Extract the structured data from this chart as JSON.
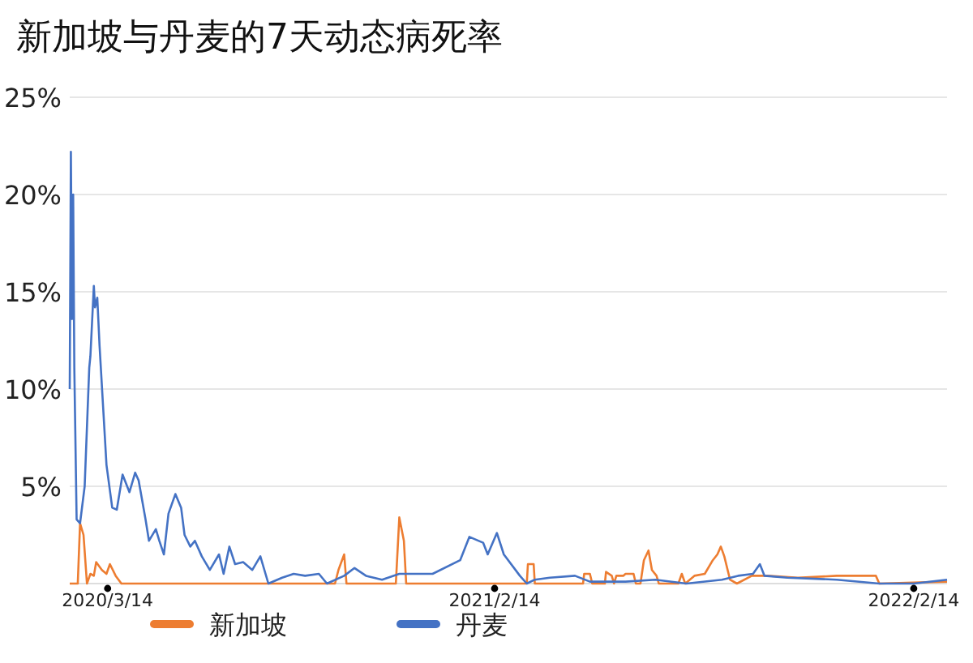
{
  "chart_data": {
    "type": "line",
    "title": "新加坡与丹麦的7天动态病死率",
    "xlim": [
      "2020-02-10",
      "2022-03-15"
    ],
    "xticks": [
      {
        "value": "2020-03-14",
        "label": "2020/3/14"
      },
      {
        "value": "2021-02-14",
        "label": "2021/2/14"
      },
      {
        "value": "2022-02-14",
        "label": "2022/2/14"
      }
    ],
    "ylim": [
      0,
      25
    ],
    "yticks": [
      {
        "value": 5,
        "label": "5%"
      },
      {
        "value": 10,
        "label": "10%"
      },
      {
        "value": 15,
        "label": "15%"
      },
      {
        "value": 20,
        "label": "20%"
      },
      {
        "value": 25,
        "label": "25%"
      }
    ],
    "grid": "y",
    "legend": "bottom",
    "series": [
      {
        "name": "新加坡",
        "color": "#ed7d31",
        "x": [
          "2020-02-10",
          "2020-02-17",
          "2020-02-19",
          "2020-02-22",
          "2020-02-25",
          "2020-02-28",
          "2020-03-02",
          "2020-03-04",
          "2020-03-09",
          "2020-03-13",
          "2020-03-16",
          "2020-03-21",
          "2020-03-26",
          "2020-05-03",
          "2020-09-28",
          "2020-10-01",
          "2020-10-06",
          "2020-10-08",
          "2020-11-20",
          "2020-11-23",
          "2020-11-27",
          "2020-11-29",
          "2021-03-14",
          "2021-03-15",
          "2021-03-20",
          "2021-03-21",
          "2021-05-02",
          "2021-05-03",
          "2021-05-08",
          "2021-05-10",
          "2021-05-21",
          "2021-05-22",
          "2021-05-27",
          "2021-05-29",
          "2021-05-31",
          "2021-06-06",
          "2021-06-08",
          "2021-06-15",
          "2021-06-17",
          "2021-06-21",
          "2021-06-24",
          "2021-06-28",
          "2021-07-01",
          "2021-07-05",
          "2021-07-07",
          "2021-07-24",
          "2021-07-27",
          "2021-07-30",
          "2021-08-07",
          "2021-08-16",
          "2021-08-23",
          "2021-08-27",
          "2021-08-30",
          "2021-09-02",
          "2021-09-07",
          "2021-09-13",
          "2021-09-26",
          "2021-10-10",
          "2021-11-05",
          "2021-12-09",
          "2022-01-06",
          "2022-01-12",
          "2022-01-15",
          "2022-03-15"
        ],
        "values": [
          0,
          0,
          3.1,
          2.5,
          0,
          0.5,
          0.4,
          1.1,
          0.7,
          0.5,
          1.0,
          0.4,
          0,
          0,
          0,
          0.7,
          1.5,
          0,
          0,
          3.4,
          2.2,
          0,
          0,
          1.0,
          1.0,
          0,
          0,
          0.5,
          0.5,
          0,
          0,
          0.6,
          0.4,
          0,
          0.4,
          0.4,
          0.5,
          0.5,
          0,
          0,
          1.2,
          1.7,
          0.7,
          0.4,
          0,
          0,
          0.5,
          0,
          0.4,
          0.5,
          1.2,
          1.5,
          1.9,
          1.4,
          0.2,
          0,
          0.4,
          0.4,
          0.3,
          0.4,
          0.4,
          0.4,
          0,
          0.1
        ]
      },
      {
        "name": "丹麦",
        "color": "#4472c4",
        "x": [
          "2020-02-10",
          "2020-02-11",
          "2020-02-12",
          "2020-02-13",
          "2020-02-14",
          "2020-02-16",
          "2020-02-19",
          "2020-02-23",
          "2020-02-27",
          "2020-02-28",
          "2020-03-02",
          "2020-03-03",
          "2020-03-05",
          "2020-03-07",
          "2020-03-13",
          "2020-03-18",
          "2020-03-22",
          "2020-03-27",
          "2020-04-02",
          "2020-04-07",
          "2020-04-10",
          "2020-04-16",
          "2020-04-19",
          "2020-04-25",
          "2020-04-28",
          "2020-05-02",
          "2020-05-06",
          "2020-05-12",
          "2020-05-17",
          "2020-05-20",
          "2020-05-25",
          "2020-05-29",
          "2020-06-04",
          "2020-06-11",
          "2020-06-19",
          "2020-06-23",
          "2020-06-28",
          "2020-07-03",
          "2020-07-10",
          "2020-07-18",
          "2020-07-25",
          "2020-08-01",
          "2020-08-13",
          "2020-08-23",
          "2020-09-02",
          "2020-09-14",
          "2020-09-21",
          "2020-10-06",
          "2020-10-15",
          "2020-10-25",
          "2020-11-08",
          "2020-11-23",
          "2020-12-22",
          "2021-01-15",
          "2021-01-23",
          "2021-02-04",
          "2021-02-08",
          "2021-02-16",
          "2021-02-22",
          "2021-03-08",
          "2021-03-14",
          "2021-03-21",
          "2021-04-03",
          "2021-04-25",
          "2021-05-08",
          "2021-06-08",
          "2021-07-04",
          "2021-07-31",
          "2021-08-31",
          "2021-09-14",
          "2021-09-27",
          "2021-10-03",
          "2021-10-07",
          "2021-10-27",
          "2021-12-09",
          "2022-01-15",
          "2022-02-14",
          "2022-03-15"
        ],
        "values": [
          10.0,
          22.2,
          13.6,
          20,
          11.1,
          3.3,
          3.1,
          5.0,
          11.1,
          11.7,
          15.3,
          14.2,
          14.7,
          12.2,
          6.1,
          3.9,
          3.8,
          5.6,
          4.7,
          5.7,
          5.3,
          3.3,
          2.2,
          2.8,
          2.2,
          1.5,
          3.6,
          4.6,
          3.9,
          2.5,
          1.9,
          2.2,
          1.4,
          0.7,
          1.5,
          0.5,
          1.9,
          1.0,
          1.1,
          0.7,
          1.4,
          0,
          0.3,
          0.5,
          0.4,
          0.5,
          0,
          0.4,
          0.8,
          0.4,
          0.2,
          0.5,
          0.5,
          1.2,
          2.4,
          2.1,
          1.5,
          2.6,
          1.5,
          0.4,
          0,
          0.2,
          0.3,
          0.4,
          0.1,
          0.1,
          0.2,
          0,
          0.2,
          0.4,
          0.5,
          1.0,
          0.4,
          0.3,
          0.2,
          0,
          0,
          0.2
        ]
      }
    ]
  }
}
